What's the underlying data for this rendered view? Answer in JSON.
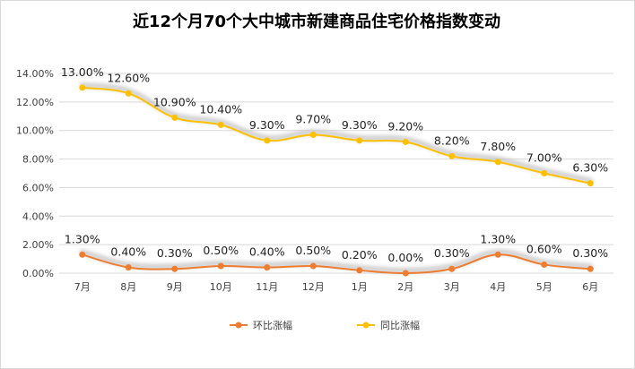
{
  "chart_data": {
    "type": "line",
    "title": "近12个月70个大中城市新建商品住宅价格指数变动",
    "categories": [
      "7月",
      "8月",
      "9月",
      "10月",
      "11月",
      "12月",
      "1月",
      "2月",
      "3月",
      "4月",
      "5月",
      "6月"
    ],
    "series": [
      {
        "name": "环比涨幅",
        "values": [
          1.3,
          0.4,
          0.3,
          0.5,
          0.4,
          0.5,
          0.2,
          0.0,
          0.3,
          1.3,
          0.6,
          0.3
        ],
        "labels": [
          "1.30%",
          "0.40%",
          "0.30%",
          "0.50%",
          "0.40%",
          "0.50%",
          "0.20%",
          "0.00%",
          "0.30%",
          "1.30%",
          "0.60%",
          "0.30%"
        ],
        "color": "#ED7D31"
      },
      {
        "name": "同比涨幅",
        "values": [
          13.0,
          12.6,
          10.9,
          10.4,
          9.3,
          9.7,
          9.3,
          9.2,
          8.2,
          7.8,
          7.0,
          6.3
        ],
        "labels": [
          "13.00%",
          "12.60%",
          "10.90%",
          "10.40%",
          "9.30%",
          "9.70%",
          "9.30%",
          "9.20%",
          "8.20%",
          "7.80%",
          "7.00%",
          "6.30%"
        ],
        "color": "#FFC000"
      }
    ],
    "y_ticks": [
      "0.00%",
      "2.00%",
      "4.00%",
      "6.00%",
      "8.00%",
      "10.00%",
      "12.00%",
      "14.00%"
    ],
    "ylim": [
      0,
      14
    ],
    "grid": true,
    "legend_position": "bottom"
  }
}
